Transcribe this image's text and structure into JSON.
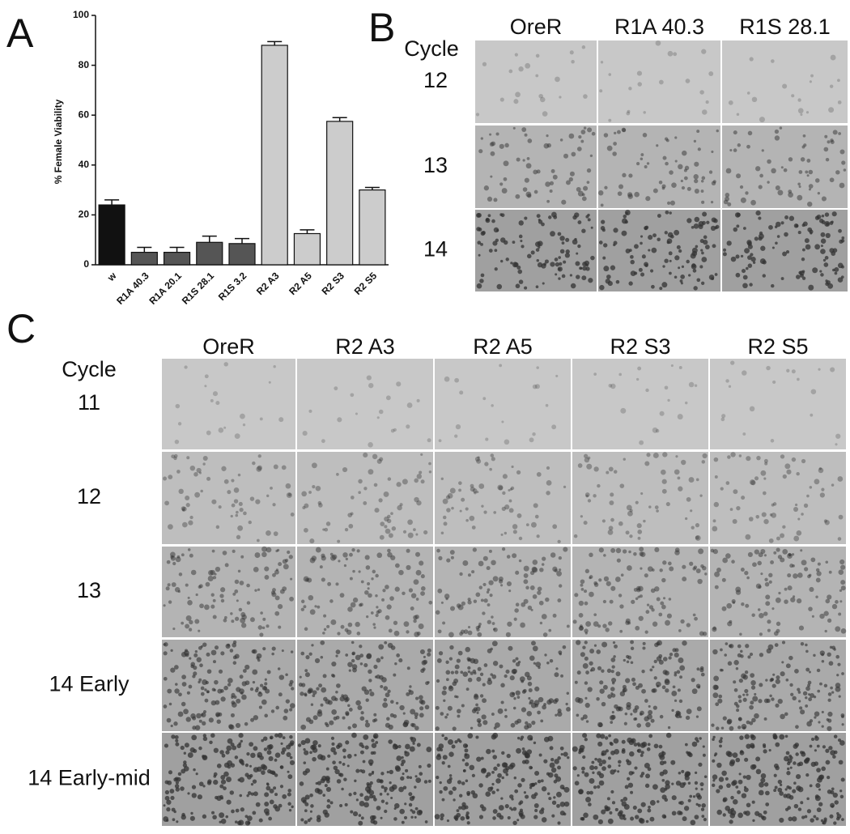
{
  "chart_data": {
    "type": "bar",
    "y_label": "% Female Viability",
    "categories": [
      "w",
      "R1A 40.3",
      "R1A 20.1",
      "R1S 28.1",
      "R1S 3.2",
      "R2 A3",
      "R2 A5",
      "R2 S3",
      "R2 S5"
    ],
    "values": [
      24,
      5,
      5,
      9,
      8.5,
      88,
      12.5,
      57.5,
      30
    ],
    "errors": [
      2,
      2,
      2,
      2.5,
      2,
      1.5,
      1.5,
      1.5,
      1
    ],
    "colors": [
      "#111111",
      "#555555",
      "#555555",
      "#555555",
      "#555555",
      "#cccccc",
      "#cccccc",
      "#cccccc",
      "#cccccc"
    ],
    "ylim": [
      0,
      100
    ],
    "yticks": [
      0,
      20,
      40,
      60,
      80,
      100
    ],
    "grid": false
  },
  "panel_labels": [
    "A",
    "B",
    "C"
  ],
  "panel_b": {
    "row_title": "Cycle",
    "columns": [
      "OreR",
      "R1A 40.3",
      "R1S 28.1"
    ],
    "rows": [
      "12",
      "13",
      "14"
    ]
  },
  "panel_c": {
    "row_title": "Cycle",
    "columns": [
      "OreR",
      "R2 A3",
      "R2 A5",
      "R2 S3",
      "R2 S5"
    ],
    "rows": [
      "11",
      "12",
      "13",
      "14 Early",
      "14 Early-mid"
    ]
  }
}
